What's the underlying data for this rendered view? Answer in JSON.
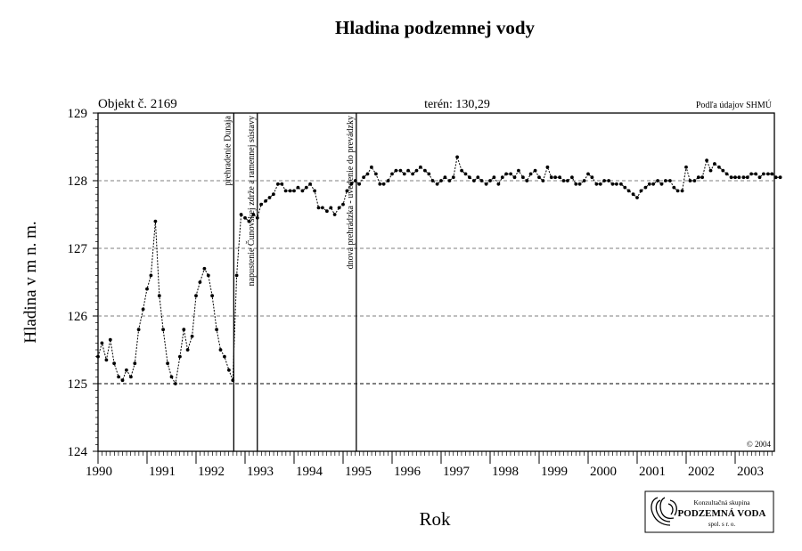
{
  "chart_data": {
    "type": "line",
    "title": "Hladina podzemnej vody",
    "xlabel": "Rok",
    "ylabel": "Hladina v m n. m.",
    "ylim": [
      124,
      129
    ],
    "yticks": [
      "124",
      "125",
      "126",
      "127",
      "128",
      "129"
    ],
    "xticks": [
      "1990",
      "1991",
      "1992",
      "1993",
      "1994",
      "1995",
      "1996",
      "1997",
      "1998",
      "1999",
      "2000",
      "2001",
      "2002",
      "2003"
    ],
    "grid": "horizontal dashed at 125, 126, 127, 128",
    "reference_line": 125,
    "corner_labels": {
      "object": "Objekt č. 2169",
      "terrain": "terén: 130,29",
      "source": "Podľa údajov SHMÚ",
      "copyright": "© 2004"
    },
    "events": [
      {
        "year": 1992.77,
        "label": "prehradenie Dunaja"
      },
      {
        "year": 1993.25,
        "label": "napustenie Čunovskej zdrže a ramennej sústavy"
      },
      {
        "year": 1995.27,
        "label": "dnová prehrádzka - uvedenie do prevádzky"
      }
    ],
    "series": [
      {
        "x": [
          1990.0,
          1990.08,
          1990.17,
          1990.25,
          1990.33,
          1990.42,
          1990.5,
          1990.58,
          1990.67,
          1990.75,
          1990.83,
          1990.92,
          1991.0,
          1991.08,
          1991.17,
          1991.25,
          1991.33,
          1991.42,
          1991.5,
          1991.58,
          1991.67,
          1991.75,
          1991.83,
          1991.92,
          1992.0,
          1992.08,
          1992.17,
          1992.25,
          1992.33,
          1992.42,
          1992.5,
          1992.58,
          1992.67,
          1992.75,
          1992.83,
          1992.92,
          1993.0,
          1993.08,
          1993.17,
          1993.25,
          1993.33,
          1993.42,
          1993.5,
          1993.58,
          1993.67,
          1993.75,
          1993.83,
          1993.92,
          1994.0,
          1994.08,
          1994.17,
          1994.25,
          1994.33,
          1994.42,
          1994.5,
          1994.58,
          1994.67,
          1994.75,
          1994.83,
          1994.92,
          1995.0,
          1995.08,
          1995.17,
          1995.25,
          1995.33,
          1995.42,
          1995.5,
          1995.58,
          1995.67,
          1995.75,
          1995.83,
          1995.92,
          1996.0,
          1996.08,
          1996.17,
          1996.25,
          1996.33,
          1996.42,
          1996.5,
          1996.58,
          1996.67,
          1996.75,
          1996.83,
          1996.92,
          1997.0,
          1997.08,
          1997.17,
          1997.25,
          1997.33,
          1997.42,
          1997.5,
          1997.58,
          1997.67,
          1997.75,
          1997.83,
          1997.92,
          1998.0,
          1998.08,
          1998.17,
          1998.25,
          1998.33,
          1998.42,
          1998.5,
          1998.58,
          1998.67,
          1998.75,
          1998.83,
          1998.92,
          1999.0,
          1999.08,
          1999.17,
          1999.25,
          1999.33,
          1999.42,
          1999.5,
          1999.58,
          1999.67,
          1999.75,
          1999.83,
          1999.92,
          2000.0,
          2000.08,
          2000.17,
          2000.25,
          2000.33,
          2000.42,
          2000.5,
          2000.58,
          2000.67,
          2000.75,
          2000.83,
          2000.92,
          2001.0,
          2001.08,
          2001.17,
          2001.25,
          2001.33,
          2001.42,
          2001.5,
          2001.58,
          2001.67,
          2001.75,
          2001.83,
          2001.92,
          2002.0,
          2002.08,
          2002.17,
          2002.25,
          2002.33,
          2002.42,
          2002.5,
          2002.58,
          2002.67,
          2002.75,
          2002.83,
          2002.92,
          2003.0,
          2003.08,
          2003.17,
          2003.25,
          2003.33,
          2003.42,
          2003.5,
          2003.58,
          2003.67,
          2003.75,
          2003.83,
          2003.92
        ],
        "y": [
          125.4,
          125.6,
          125.35,
          125.65,
          125.3,
          125.1,
          125.05,
          125.2,
          125.1,
          125.3,
          125.8,
          126.1,
          126.4,
          126.6,
          127.4,
          126.3,
          125.8,
          125.3,
          125.1,
          125.0,
          125.4,
          125.8,
          125.5,
          125.7,
          126.3,
          126.5,
          126.7,
          126.6,
          126.3,
          125.8,
          125.5,
          125.4,
          125.2,
          125.05,
          126.6,
          127.5,
          127.45,
          127.4,
          127.5,
          127.45,
          127.65,
          127.7,
          127.75,
          127.8,
          127.95,
          127.95,
          127.85,
          127.85,
          127.85,
          127.9,
          127.85,
          127.9,
          127.95,
          127.85,
          127.6,
          127.6,
          127.55,
          127.6,
          127.5,
          127.6,
          127.65,
          127.85,
          127.95,
          128.0,
          127.95,
          128.05,
          128.1,
          128.2,
          128.1,
          127.95,
          127.95,
          128.0,
          128.1,
          128.15,
          128.15,
          128.1,
          128.15,
          128.1,
          128.15,
          128.2,
          128.15,
          128.1,
          128.0,
          127.95,
          128.0,
          128.05,
          128.0,
          128.05,
          128.35,
          128.15,
          128.1,
          128.05,
          128.0,
          128.05,
          128.0,
          127.95,
          128.0,
          128.05,
          127.95,
          128.05,
          128.1,
          128.1,
          128.05,
          128.15,
          128.05,
          128.0,
          128.1,
          128.15,
          128.05,
          128.0,
          128.2,
          128.05,
          128.05,
          128.05,
          128.0,
          128.0,
          128.05,
          127.95,
          127.95,
          128.0,
          128.1,
          128.05,
          127.95,
          127.95,
          128.0,
          128.0,
          127.95,
          127.95,
          127.95,
          127.9,
          127.85,
          127.8,
          127.75,
          127.85,
          127.9,
          127.95,
          127.95,
          128.0,
          127.95,
          128.0,
          128.0,
          127.9,
          127.85,
          127.85,
          128.2,
          128.0,
          128.0,
          128.05,
          128.05,
          128.3,
          128.15,
          128.25,
          128.2,
          128.15,
          128.1,
          128.05,
          128.05,
          128.05,
          128.05,
          128.05,
          128.1,
          128.1,
          128.05,
          128.1,
          128.1,
          128.1,
          128.05,
          128.05
        ]
      }
    ]
  },
  "logo": {
    "line1": "Konzultačná skupina",
    "line2": "PODZEMNÁ VODA",
    "line3": "spol. s r. o."
  }
}
